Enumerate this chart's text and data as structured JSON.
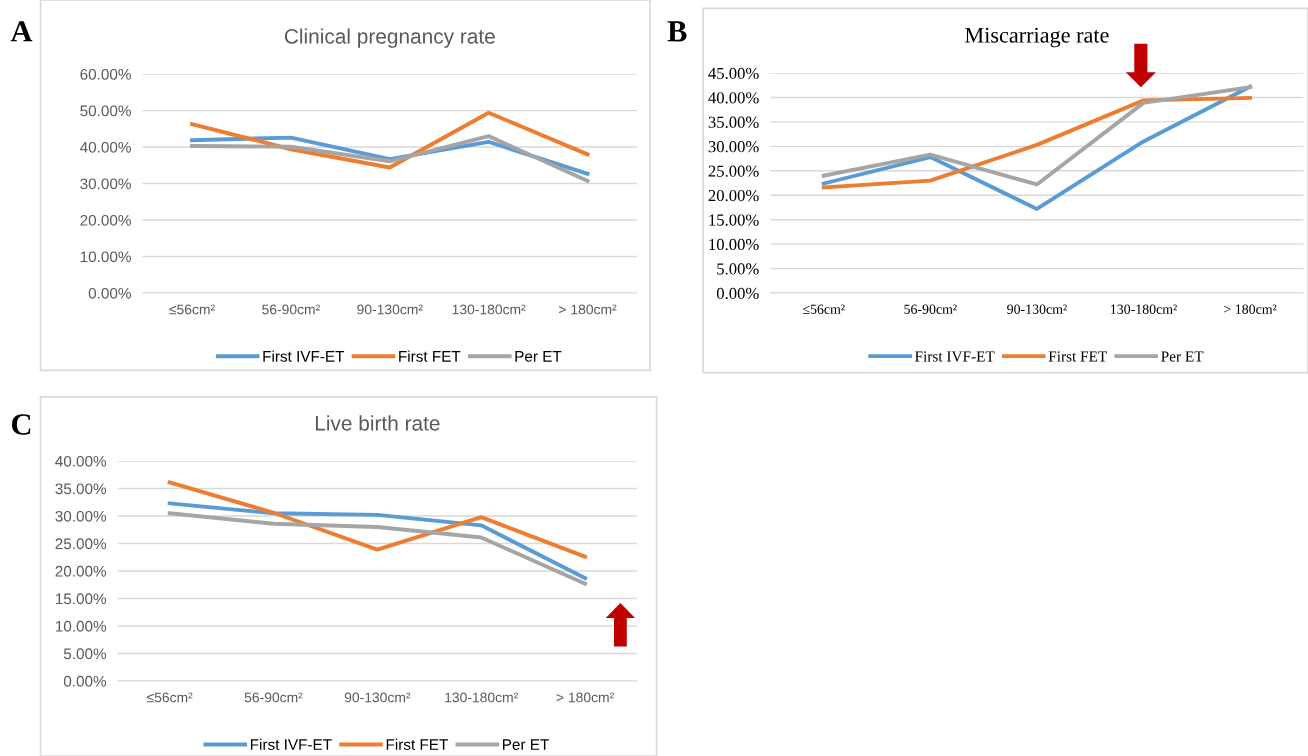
{
  "chart_data": [
    {
      "type": "line",
      "title": "Clinical pregnancy rate",
      "annotations": [
        "A"
      ],
      "categories": [
        "≤56cm²",
        "56-90cm²",
        "90-130cm²",
        "130-180cm²",
        "> 180cm²"
      ],
      "series": [
        {
          "name": "First IVF-ET",
          "color": "#5b9bd5",
          "values": [
            41.9,
            42.6,
            36.7,
            41.4,
            32.7
          ]
        },
        {
          "name": "First FET",
          "color": "#ed7d31",
          "values": [
            46.3,
            39.4,
            34.4,
            49.4,
            38.0
          ]
        },
        {
          "name": "Per ET",
          "color": "#a5a5a5",
          "values": [
            40.3,
            40.1,
            36.1,
            43.0,
            30.7
          ]
        }
      ],
      "ylim": [
        0,
        60
      ],
      "yticks": [
        {
          "value": 0,
          "label": "0.00%"
        },
        {
          "value": 10,
          "label": "10.00%"
        },
        {
          "value": 20,
          "label": "20.00%"
        },
        {
          "value": 30,
          "label": "30.00%"
        },
        {
          "value": 40,
          "label": "40.00%"
        },
        {
          "value": 50,
          "label": "50.00%"
        },
        {
          "value": 60,
          "label": "60.00%"
        }
      ],
      "grid": "y",
      "legend": "bottom",
      "marker": "none",
      "line_style": "solid"
    },
    {
      "type": "line",
      "title": "Miscarriage rate",
      "annotations": [
        "B"
      ],
      "categories": [
        "≤56cm²",
        "56-90cm²",
        "90-130cm²",
        "130-180cm²",
        "> 180cm²"
      ],
      "series": [
        {
          "name": "First IVF-ET",
          "color": "#5b9bd5",
          "values": [
            22.4,
            27.8,
            17.2,
            31.0,
            42.2
          ]
        },
        {
          "name": "First FET",
          "color": "#ed7d31",
          "values": [
            21.6,
            23.0,
            30.3,
            39.4,
            39.9
          ]
        },
        {
          "name": "Per ET",
          "color": "#a5a5a5",
          "values": [
            24.0,
            28.3,
            22.2,
            38.9,
            42.1
          ]
        }
      ],
      "ylim": [
        0,
        45
      ],
      "yticks": [
        {
          "value": 0,
          "label": "0.00%"
        },
        {
          "value": 5,
          "label": "5.00%"
        },
        {
          "value": 10,
          "label": "10.00%"
        },
        {
          "value": 15,
          "label": "15.00%"
        },
        {
          "value": 20,
          "label": "20.00%"
        },
        {
          "value": 25,
          "label": "25.00%"
        },
        {
          "value": 30,
          "label": "30.00%"
        },
        {
          "value": 35,
          "label": "35.00%"
        },
        {
          "value": 40,
          "label": "40.00%"
        },
        {
          "value": 45,
          "label": "45.00%"
        }
      ],
      "grid": "y",
      "legend": "bottom",
      "marker": "none",
      "line_style": "solid"
    },
    {
      "type": "line",
      "title": "Live birth rate",
      "annotations": [
        "C"
      ],
      "categories": [
        "≤56cm²",
        "56-90cm²",
        "90-130cm²",
        "130-180cm²",
        "> 180cm²"
      ],
      "series": [
        {
          "name": "First IVF-ET",
          "color": "#5b9bd5",
          "values": [
            32.3,
            30.5,
            30.2,
            28.3,
            18.7
          ]
        },
        {
          "name": "First FET",
          "color": "#ed7d31",
          "values": [
            36.1,
            30.6,
            23.9,
            29.8,
            22.6
          ]
        },
        {
          "name": "Per ET",
          "color": "#a5a5a5",
          "values": [
            30.5,
            28.6,
            28.0,
            26.1,
            17.7
          ]
        }
      ],
      "ylim": [
        0,
        40
      ],
      "yticks": [
        {
          "value": 0,
          "label": "0.00%"
        },
        {
          "value": 5,
          "label": "5.00%"
        },
        {
          "value": 10,
          "label": "10.00%"
        },
        {
          "value": 15,
          "label": "15.00%"
        },
        {
          "value": 20,
          "label": "20.00%"
        },
        {
          "value": 25,
          "label": "25.00%"
        },
        {
          "value": 30,
          "label": "30.00%"
        },
        {
          "value": 35,
          "label": "35.00%"
        },
        {
          "value": 40,
          "label": "40.00%"
        }
      ],
      "grid": "y",
      "legend": "bottom",
      "marker": "none",
      "line_style": "solid"
    }
  ]
}
